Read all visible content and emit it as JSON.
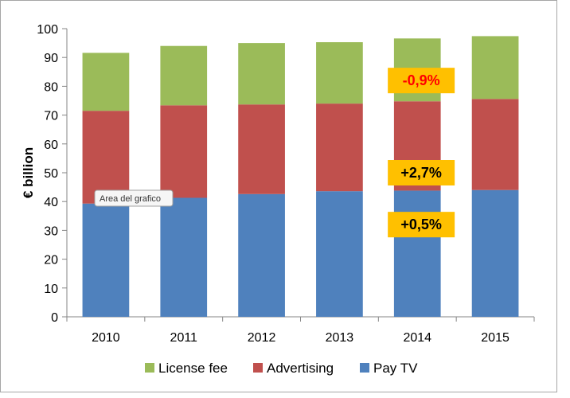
{
  "chart_data": {
    "type": "bar",
    "stacked": true,
    "categories": [
      "2010",
      "2011",
      "2012",
      "2013",
      "2014",
      "2015"
    ],
    "series": [
      {
        "name": "Pay TV",
        "color": "#4f81bd",
        "values": [
          39.3,
          41.3,
          42.6,
          43.6,
          43.8,
          44.0
        ]
      },
      {
        "name": "Advertising",
        "color": "#c0504d",
        "values": [
          32.2,
          32.1,
          31.1,
          30.4,
          31.0,
          31.6
        ]
      },
      {
        "name": "License fee",
        "color": "#9bbb59",
        "values": [
          20.1,
          20.6,
          21.3,
          21.3,
          21.8,
          21.8
        ]
      }
    ],
    "title": "",
    "xlabel": "",
    "ylabel": "€ billion",
    "ylim": [
      0,
      100
    ],
    "yticks": [
      0,
      10,
      20,
      30,
      40,
      50,
      60,
      70,
      80,
      90,
      100
    ],
    "grid": false,
    "legend_position": "bottom",
    "legend_order": [
      "License fee",
      "Advertising",
      "Pay TV"
    ],
    "annotations": [
      {
        "text": "-0,9%",
        "category": "2014",
        "y": 82,
        "color": "#ff0000"
      },
      {
        "text": "+2,7%",
        "category": "2014",
        "y": 50,
        "color": "#000000"
      },
      {
        "text": "+0,5%",
        "category": "2014",
        "y": 32,
        "color": "#000000"
      }
    ],
    "tooltip": "Area del grafico"
  }
}
